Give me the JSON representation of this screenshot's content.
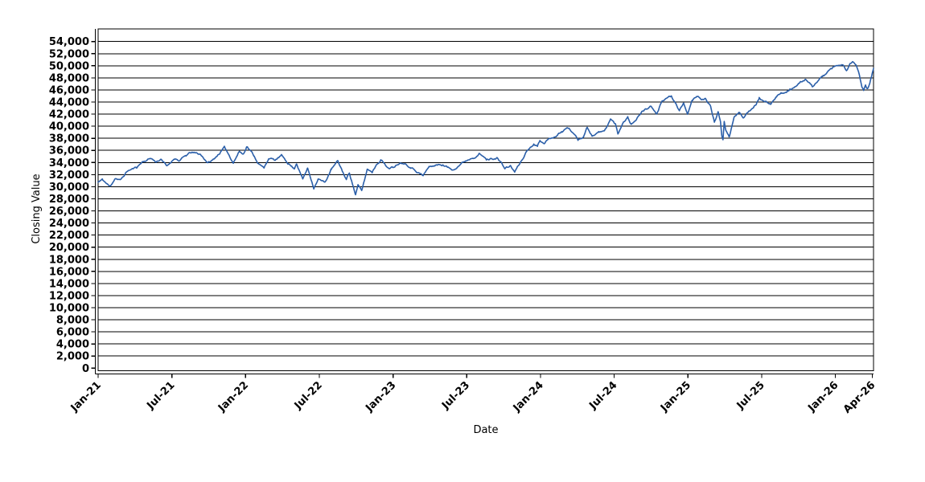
{
  "chart_data": {
    "type": "line",
    "title": "",
    "xlabel": "Date",
    "ylabel": "Closing Value",
    "legend": "none",
    "grid": "horizontal-only",
    "background_color": "#ffffff",
    "gridline_color": "#000000",
    "axis_color": "#000000",
    "x_domain_months": [
      0,
      63.1
    ],
    "x_domain_labels": [
      "Jan-21",
      "Apr-26"
    ],
    "ylim": [
      -450,
      56100
    ],
    "y_tick_step": 2000,
    "y_ticks": [
      0,
      2000,
      4000,
      6000,
      8000,
      10000,
      12000,
      14000,
      16000,
      18000,
      20000,
      22000,
      24000,
      26000,
      28000,
      30000,
      32000,
      34000,
      36000,
      38000,
      40000,
      42000,
      44000,
      46000,
      48000,
      50000,
      52000,
      54000
    ],
    "x_ticks": [
      {
        "m": 0,
        "label": "Jan-21"
      },
      {
        "m": 6,
        "label": "Jul-21"
      },
      {
        "m": 12,
        "label": "Jan-22"
      },
      {
        "m": 18,
        "label": "Jul-22"
      },
      {
        "m": 24,
        "label": "Jan-23"
      },
      {
        "m": 30,
        "label": "Jul-23"
      },
      {
        "m": 36,
        "label": "Jan-24"
      },
      {
        "m": 42,
        "label": "Jul-24"
      },
      {
        "m": 48,
        "label": "Jan-25"
      },
      {
        "m": 54,
        "label": "Jul-25"
      },
      {
        "m": 60,
        "label": "Jan-26"
      },
      {
        "m": 63,
        "label": "Apr-26"
      }
    ],
    "noise": {
      "amplitude": 130,
      "seed": 11,
      "step_months": 0.075,
      "persistence": 0.82
    },
    "series": [
      {
        "name": "Closing Value",
        "color": "#2b5fa9",
        "line_width": 1.6,
        "anchor_points": [
          [
            0.0,
            30750
          ],
          [
            0.35,
            31150
          ],
          [
            0.95,
            29990
          ],
          [
            1.4,
            31480
          ],
          [
            1.8,
            31020
          ],
          [
            2.4,
            32630
          ],
          [
            3.1,
            33150
          ],
          [
            3.6,
            34140
          ],
          [
            4.35,
            34750
          ],
          [
            4.7,
            34060
          ],
          [
            5.15,
            34640
          ],
          [
            5.6,
            33300
          ],
          [
            6.25,
            34770
          ],
          [
            6.6,
            34340
          ],
          [
            7.15,
            35080
          ],
          [
            7.55,
            35610
          ],
          [
            8.3,
            35360
          ],
          [
            8.95,
            33970
          ],
          [
            9.35,
            34400
          ],
          [
            9.95,
            35740
          ],
          [
            10.3,
            36430
          ],
          [
            11.0,
            34060
          ],
          [
            11.5,
            35900
          ],
          [
            11.8,
            35380
          ],
          [
            12.1,
            36790
          ],
          [
            12.7,
            35080
          ],
          [
            13.05,
            33900
          ],
          [
            13.5,
            33010
          ],
          [
            13.9,
            34790
          ],
          [
            14.4,
            34320
          ],
          [
            14.9,
            35090
          ],
          [
            15.5,
            33880
          ],
          [
            15.95,
            32980
          ],
          [
            16.15,
            33980
          ],
          [
            16.65,
            31260
          ],
          [
            17.05,
            33050
          ],
          [
            17.55,
            29900
          ],
          [
            17.9,
            31380
          ],
          [
            18.45,
            30630
          ],
          [
            18.95,
            32800
          ],
          [
            19.5,
            34140
          ],
          [
            20.2,
            31190
          ],
          [
            20.45,
            32350
          ],
          [
            20.95,
            28730
          ],
          [
            21.15,
            30180
          ],
          [
            21.45,
            29260
          ],
          [
            21.9,
            32860
          ],
          [
            22.3,
            32480
          ],
          [
            22.65,
            33740
          ],
          [
            23.0,
            34580
          ],
          [
            23.7,
            32930
          ],
          [
            23.95,
            33150
          ],
          [
            24.45,
            33960
          ],
          [
            24.9,
            34050
          ],
          [
            25.4,
            33440
          ],
          [
            25.9,
            32700
          ],
          [
            26.45,
            31830
          ],
          [
            26.9,
            33210
          ],
          [
            27.4,
            33550
          ],
          [
            28.05,
            33670
          ],
          [
            28.8,
            32780
          ],
          [
            29.35,
            33620
          ],
          [
            29.9,
            34310
          ],
          [
            30.5,
            34950
          ],
          [
            31.0,
            35560
          ],
          [
            31.6,
            34480
          ],
          [
            32.1,
            34650
          ],
          [
            32.45,
            34890
          ],
          [
            33.1,
            33010
          ],
          [
            33.55,
            33440
          ],
          [
            33.9,
            32430
          ],
          [
            34.4,
            34100
          ],
          [
            34.9,
            35960
          ],
          [
            35.45,
            37080
          ],
          [
            35.75,
            36960
          ],
          [
            35.95,
            37700
          ],
          [
            36.4,
            37480
          ],
          [
            36.9,
            38160
          ],
          [
            37.4,
            38660
          ],
          [
            37.75,
            39120
          ],
          [
            38.2,
            39770
          ],
          [
            38.7,
            38900
          ],
          [
            39.05,
            37760
          ],
          [
            39.5,
            38440
          ],
          [
            39.8,
            39880
          ],
          [
            40.2,
            38490
          ],
          [
            40.7,
            39010
          ],
          [
            41.2,
            39130
          ],
          [
            41.7,
            41190
          ],
          [
            42.1,
            40300
          ],
          [
            42.3,
            38710
          ],
          [
            42.75,
            40880
          ],
          [
            43.1,
            41550
          ],
          [
            43.4,
            40350
          ],
          [
            43.8,
            41230
          ],
          [
            44.2,
            42310
          ],
          [
            44.6,
            42890
          ],
          [
            45.0,
            43270
          ],
          [
            45.45,
            41770
          ],
          [
            45.9,
            44290
          ],
          [
            46.45,
            44900
          ],
          [
            46.65,
            45010
          ],
          [
            47.3,
            42330
          ],
          [
            47.65,
            43790
          ],
          [
            47.95,
            41940
          ],
          [
            48.35,
            44250
          ],
          [
            48.7,
            44880
          ],
          [
            49.05,
            44540
          ],
          [
            49.4,
            44630
          ],
          [
            49.85,
            43180
          ],
          [
            50.15,
            40820
          ],
          [
            50.45,
            42300
          ],
          [
            50.65,
            40550
          ],
          [
            50.75,
            38310
          ],
          [
            50.85,
            37650
          ],
          [
            50.95,
            40610
          ],
          [
            51.05,
            39590
          ],
          [
            51.35,
            38170
          ],
          [
            51.75,
            41320
          ],
          [
            52.15,
            42410
          ],
          [
            52.5,
            41600
          ],
          [
            53.0,
            42700
          ],
          [
            53.55,
            43820
          ],
          [
            53.8,
            44830
          ],
          [
            54.25,
            43900
          ],
          [
            54.7,
            43590
          ],
          [
            55.15,
            44900
          ],
          [
            55.55,
            45640
          ],
          [
            55.95,
            45500
          ],
          [
            56.3,
            46100
          ],
          [
            56.65,
            46400
          ],
          [
            57.1,
            47000
          ],
          [
            57.55,
            47700
          ],
          [
            58.1,
            46500
          ],
          [
            58.5,
            47400
          ],
          [
            59.0,
            48300
          ],
          [
            59.45,
            49000
          ],
          [
            59.9,
            49650
          ],
          [
            60.3,
            49900
          ],
          [
            60.6,
            50100
          ],
          [
            60.9,
            49250
          ],
          [
            61.15,
            50150
          ],
          [
            61.4,
            50400
          ],
          [
            61.7,
            49900
          ],
          [
            61.95,
            48400
          ],
          [
            62.15,
            46500
          ],
          [
            62.3,
            45900
          ],
          [
            62.45,
            46750
          ],
          [
            62.6,
            46200
          ],
          [
            62.8,
            47100
          ],
          [
            62.95,
            48300
          ],
          [
            63.1,
            49400
          ]
        ]
      }
    ]
  }
}
